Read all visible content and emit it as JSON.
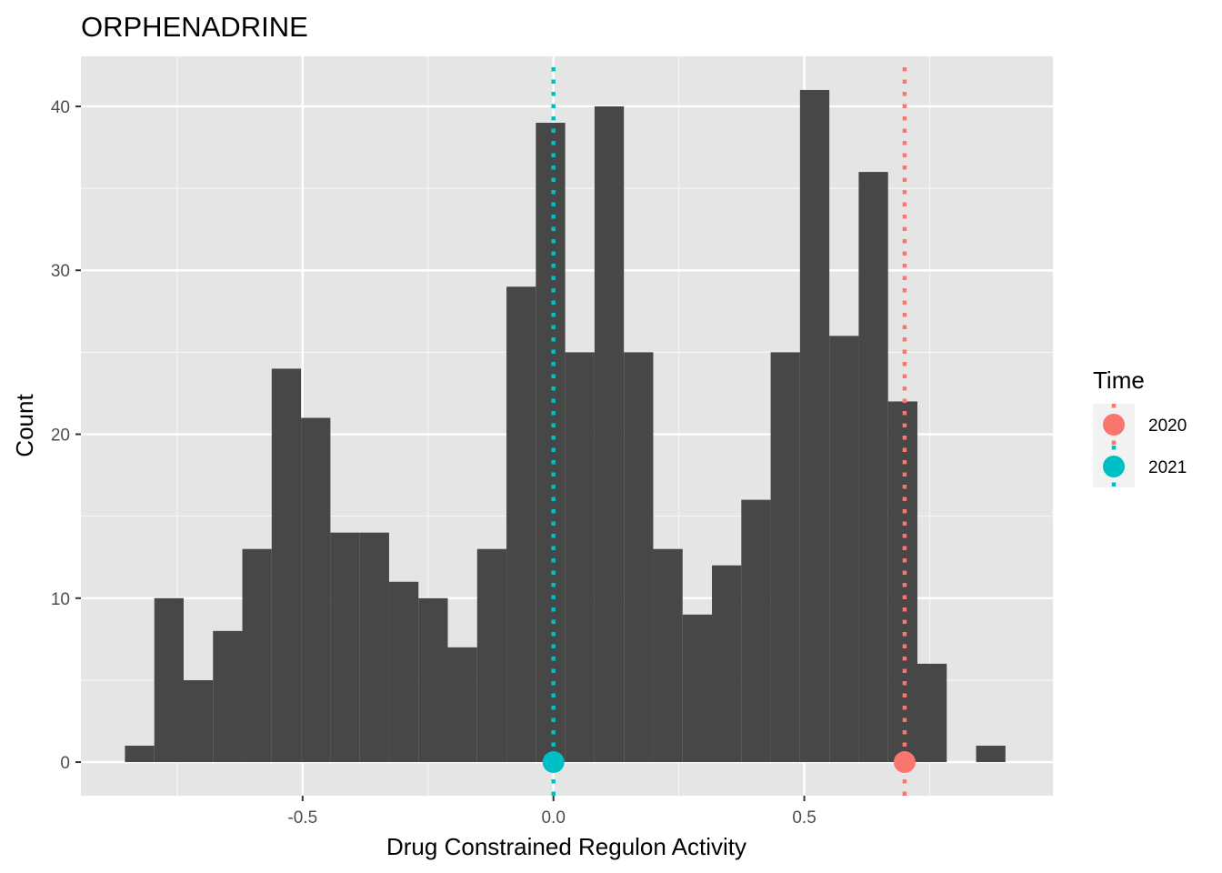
{
  "chart_data": {
    "type": "histogram",
    "title": "ORPHENADRINE",
    "xlabel": "Drug Constrained Regulon Activity",
    "ylabel": "Count",
    "xlim": [
      -0.9418,
      0.9955
    ],
    "ylim": [
      -2.05,
      43.05
    ],
    "x_ticks": [
      -0.5,
      0.0,
      0.5
    ],
    "x_tick_labels": [
      "-0.5",
      "0.0",
      "0.5"
    ],
    "y_ticks": [
      0,
      10,
      20,
      30,
      40
    ],
    "y_tick_labels": [
      "0",
      "10",
      "20",
      "30",
      "40"
    ],
    "bin_width": 0.0585,
    "bins": [
      {
        "x": -0.8248,
        "count": 1
      },
      {
        "x": -0.7663,
        "count": 10
      },
      {
        "x": -0.7078,
        "count": 5
      },
      {
        "x": -0.6493,
        "count": 8
      },
      {
        "x": -0.5908,
        "count": 13
      },
      {
        "x": -0.5323,
        "count": 24
      },
      {
        "x": -0.4738,
        "count": 21
      },
      {
        "x": -0.4153,
        "count": 14
      },
      {
        "x": -0.3568,
        "count": 14
      },
      {
        "x": -0.2983,
        "count": 11
      },
      {
        "x": -0.2398,
        "count": 10
      },
      {
        "x": -0.1813,
        "count": 7
      },
      {
        "x": -0.1228,
        "count": 13
      },
      {
        "x": -0.0643,
        "count": 29
      },
      {
        "x": -0.0058,
        "count": 39
      },
      {
        "x": 0.0527,
        "count": 25
      },
      {
        "x": 0.1112,
        "count": 40
      },
      {
        "x": 0.1697,
        "count": 25
      },
      {
        "x": 0.2282,
        "count": 13
      },
      {
        "x": 0.2867,
        "count": 9
      },
      {
        "x": 0.3452,
        "count": 12
      },
      {
        "x": 0.4037,
        "count": 16
      },
      {
        "x": 0.4622,
        "count": 25
      },
      {
        "x": 0.5207,
        "count": 41
      },
      {
        "x": 0.5792,
        "count": 26
      },
      {
        "x": 0.6377,
        "count": 36
      },
      {
        "x": 0.6962,
        "count": 22
      },
      {
        "x": 0.7547,
        "count": 6
      },
      {
        "x": 0.8132,
        "count": 0
      },
      {
        "x": 0.8717,
        "count": 1
      }
    ],
    "markers": [
      {
        "name": "2020",
        "x": 0.7,
        "y": 0,
        "color": "#F8766D"
      },
      {
        "name": "2021",
        "x": 0.0,
        "y": 0,
        "color": "#00BFC4"
      }
    ],
    "legend": {
      "title": "Time",
      "position": "right",
      "entries": [
        {
          "label": "2020",
          "color": "#F8766D"
        },
        {
          "label": "2021",
          "color": "#00BFC4"
        }
      ]
    },
    "bar_color": "#474747",
    "panel_color": "#E5E5E5",
    "grid": true
  }
}
